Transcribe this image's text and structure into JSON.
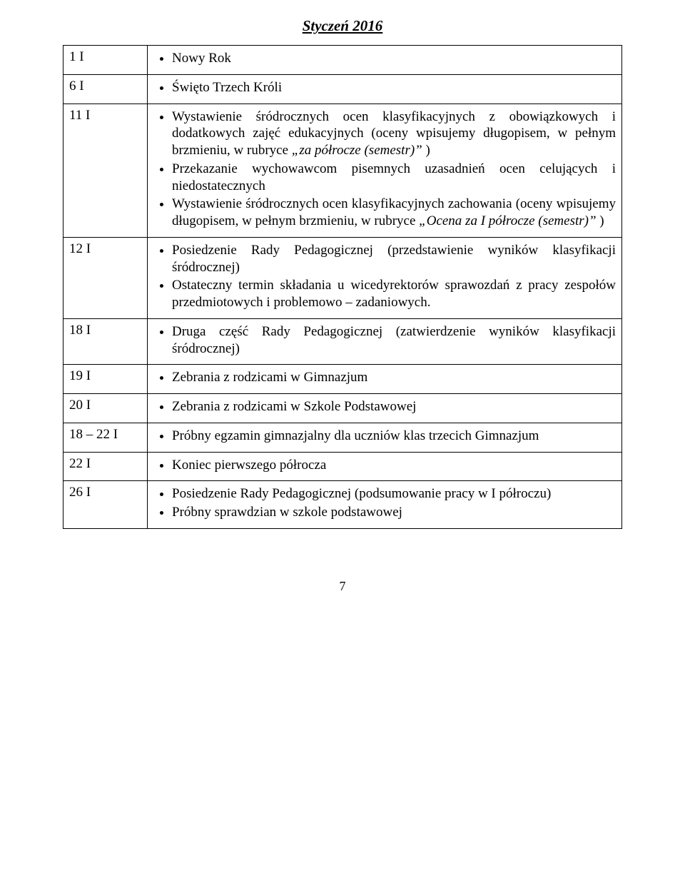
{
  "title": "Styczeń 2016",
  "page_number": "7",
  "rows": [
    {
      "date": "1 I",
      "items": [
        {
          "plain": "Nowy Rok"
        }
      ]
    },
    {
      "date": "6 I",
      "items": [
        {
          "plain": "Święto Trzech Króli"
        }
      ]
    },
    {
      "date": "11 I",
      "items": [
        {
          "pre": "Wystawienie śródrocznych ocen klasyfikacyjnych z obowiązkowych i dodatkowych zajęć edukacyjnych (oceny wpisujemy długopisem, w pełnym brzmieniu, w rubryce ",
          "ital": "„za półrocze (semestr)” ",
          "post": ")"
        },
        {
          "plain": "Przekazanie wychowawcom pisemnych uzasadnień ocen celujących i niedostatecznych"
        },
        {
          "pre": "Wystawienie śródrocznych ocen klasyfikacyjnych zachowania (oceny wpisujemy długopisem, w pełnym brzmieniu, w rubryce ",
          "ital": "„Ocena za I półrocze (semestr)” ",
          "post": ")"
        }
      ]
    },
    {
      "date": "12 I",
      "items": [
        {
          "plain": "Posiedzenie Rady Pedagogicznej (przedstawienie wyników klasyfikacji śródrocznej)"
        },
        {
          "plain": "Ostateczny termin składania  u wicedyrektorów sprawozdań  z pracy zespołów przedmiotowych i problemowo – zadaniowych."
        }
      ]
    },
    {
      "date": "18 I",
      "items": [
        {
          "plain": "Druga część Rady Pedagogicznej (zatwierdzenie wyników klasyfikacji śródrocznej)"
        }
      ]
    },
    {
      "date": "19 I",
      "items": [
        {
          "plain": "Zebrania z rodzicami w Gimnazjum"
        }
      ]
    },
    {
      "date": "20 I",
      "items": [
        {
          "plain": "Zebrania z rodzicami w Szkole Podstawowej"
        }
      ]
    },
    {
      "date": "18 – 22 I",
      "items": [
        {
          "plain": "Próbny egzamin gimnazjalny dla uczniów klas trzecich  Gimnazjum"
        }
      ]
    },
    {
      "date": "22 I",
      "items": [
        {
          "plain": "Koniec pierwszego półrocza"
        }
      ]
    },
    {
      "date": "26 I",
      "items": [
        {
          "plain": "Posiedzenie Rady Pedagogicznej (podsumowanie pracy w I półroczu)"
        },
        {
          "plain": "Próbny sprawdzian w szkole podstawowej"
        }
      ]
    }
  ]
}
